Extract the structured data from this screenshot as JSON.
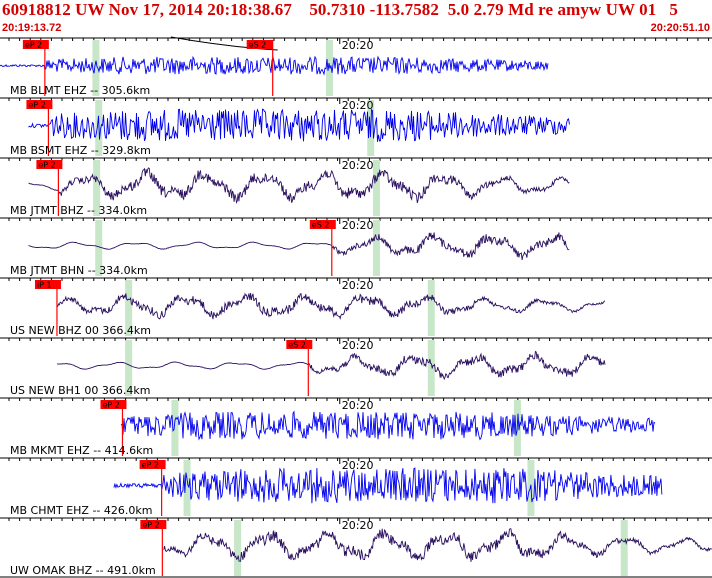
{
  "header": {
    "title": "60918812 UW Nov 17, 2014 20:18:38.67    50.7310 -113.7582  5.0 2.79 Md re amyw UW 01   5",
    "start_time": "20:19:13.72",
    "end_time": "20:20:51.10"
  },
  "colors": {
    "header_text": "#d40000",
    "blue_trace": "#0000ee",
    "purple_trace": "#2a1060",
    "pick_box": "#ff0000",
    "green_marker": "#c8e6c8",
    "tick": "#000000"
  },
  "time_tick_label": "20:20",
  "traces": [
    {
      "label": "MB BLMT EHZ -- 305.6km",
      "color": "blue",
      "style": "hf",
      "pick": "eP 2",
      "pick_t": 0.063,
      "green": [
        0.134,
        0.462
      ],
      "pick2": "eS 2",
      "pick2_t": 0.383,
      "tick": 0.48,
      "start": 0.0,
      "end": 0.77,
      "amp": 0.35,
      "curve": true
    },
    {
      "label": "MB BSMT EHZ -- 329.8km",
      "color": "blue",
      "style": "hf",
      "pick": "eP 2",
      "pick_t": 0.068,
      "green": [
        0.138,
        0.52
      ],
      "tick": 0.48,
      "start": 0.04,
      "end": 0.8,
      "amp": 0.65
    },
    {
      "label": "MB JTMT BHZ -- 334.0km",
      "color": "purple",
      "style": "lf",
      "pick": "eP 2",
      "pick_t": 0.082,
      "green": [
        0.135,
        0.528
      ],
      "tick": 0.48,
      "start": 0.04,
      "end": 0.8,
      "amp": 0.7
    },
    {
      "label": "MB JTMT BHN -- 334.0km",
      "color": "purple",
      "style": "lf",
      "pick": "eS 2",
      "pick_t": 0.466,
      "green": [
        0.138,
        0.528
      ],
      "tick": 0.48,
      "start": 0.04,
      "end": 0.8,
      "amp": 0.55
    },
    {
      "label": "US NEW BHZ 00 366.4km",
      "color": "purple",
      "style": "lf",
      "pick": "iP 1",
      "pick_t": 0.08,
      "green": [
        0.18,
        0.605
      ],
      "tick": 0.48,
      "start": 0.08,
      "end": 0.85,
      "amp": 0.55
    },
    {
      "label": "US NEW BH1 00 366.4km",
      "color": "purple",
      "style": "lf",
      "pick": "eS 2",
      "pick_t": 0.433,
      "green": [
        0.18,
        0.605
      ],
      "tick": 0.48,
      "start": 0.08,
      "end": 0.85,
      "amp": 0.55
    },
    {
      "label": "MB MKMT EHZ -- 414.6km",
      "color": "blue",
      "style": "hf",
      "pick": "eP 2",
      "pick_t": 0.172,
      "green": [
        0.245,
        0.726
      ],
      "tick": 0.48,
      "start": 0.17,
      "end": 0.92,
      "amp": 0.55
    },
    {
      "label": "MB CHMT EHZ -- 426.0km",
      "color": "blue",
      "style": "hf",
      "pick": "eP 2",
      "pick_t": 0.227,
      "green": [
        0.262,
        0.745
      ],
      "tick": 0.48,
      "start": 0.16,
      "end": 0.93,
      "amp": 0.7
    },
    {
      "label": "UW OMAK BHZ -- 491.0km",
      "color": "purple",
      "style": "lf",
      "pick": "eP 2",
      "pick_t": 0.228,
      "green": [
        0.333,
        0.876
      ],
      "tick": 0.48,
      "start": 0.23,
      "end": 1.0,
      "amp": 0.7
    }
  ]
}
